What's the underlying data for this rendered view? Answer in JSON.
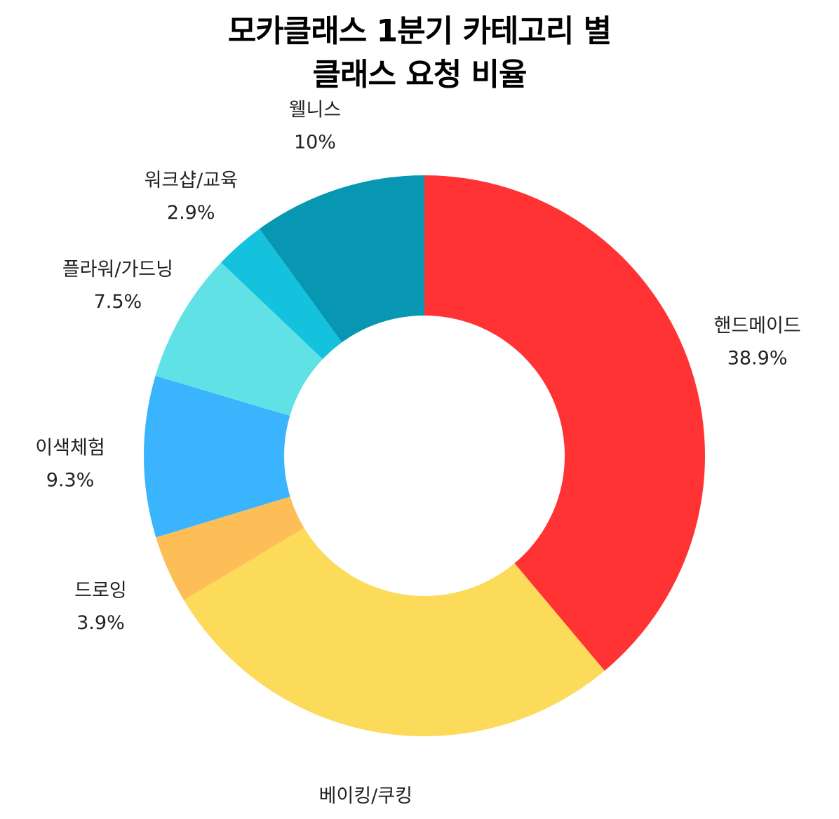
{
  "chart_data": {
    "type": "pie",
    "title": "모카클래스 1분기 카테고리 별 클래스 요청 비율",
    "title_lines": [
      "모카클래스 1분기 카테고리 별",
      "클래스 요청 비율"
    ],
    "donut": true,
    "start_angle_deg": 0,
    "direction": "clockwise",
    "slices": [
      {
        "label": "핸드메이드",
        "value": 38.9,
        "value_label": "38.9%",
        "color": "#FF3333"
      },
      {
        "label": "베이킹/쿠킹",
        "value": 27.5,
        "value_label": "27.5%",
        "color": "#FDDB5A"
      },
      {
        "label": "드로잉",
        "value": 3.9,
        "value_label": "3.9%",
        "color": "#FDBD57"
      },
      {
        "label": "이색체험",
        "value": 9.3,
        "value_label": "9.3%",
        "color": "#3BB4FE"
      },
      {
        "label": "플라워/가드닝",
        "value": 7.5,
        "value_label": "7.5%",
        "color": "#5FE1E6"
      },
      {
        "label": "워크샵/교육",
        "value": 2.9,
        "value_label": "2.9%",
        "color": "#14C2DE"
      },
      {
        "label": "웰니스",
        "value": 10,
        "value_label": "10%",
        "color": "#0897B3"
      }
    ]
  }
}
